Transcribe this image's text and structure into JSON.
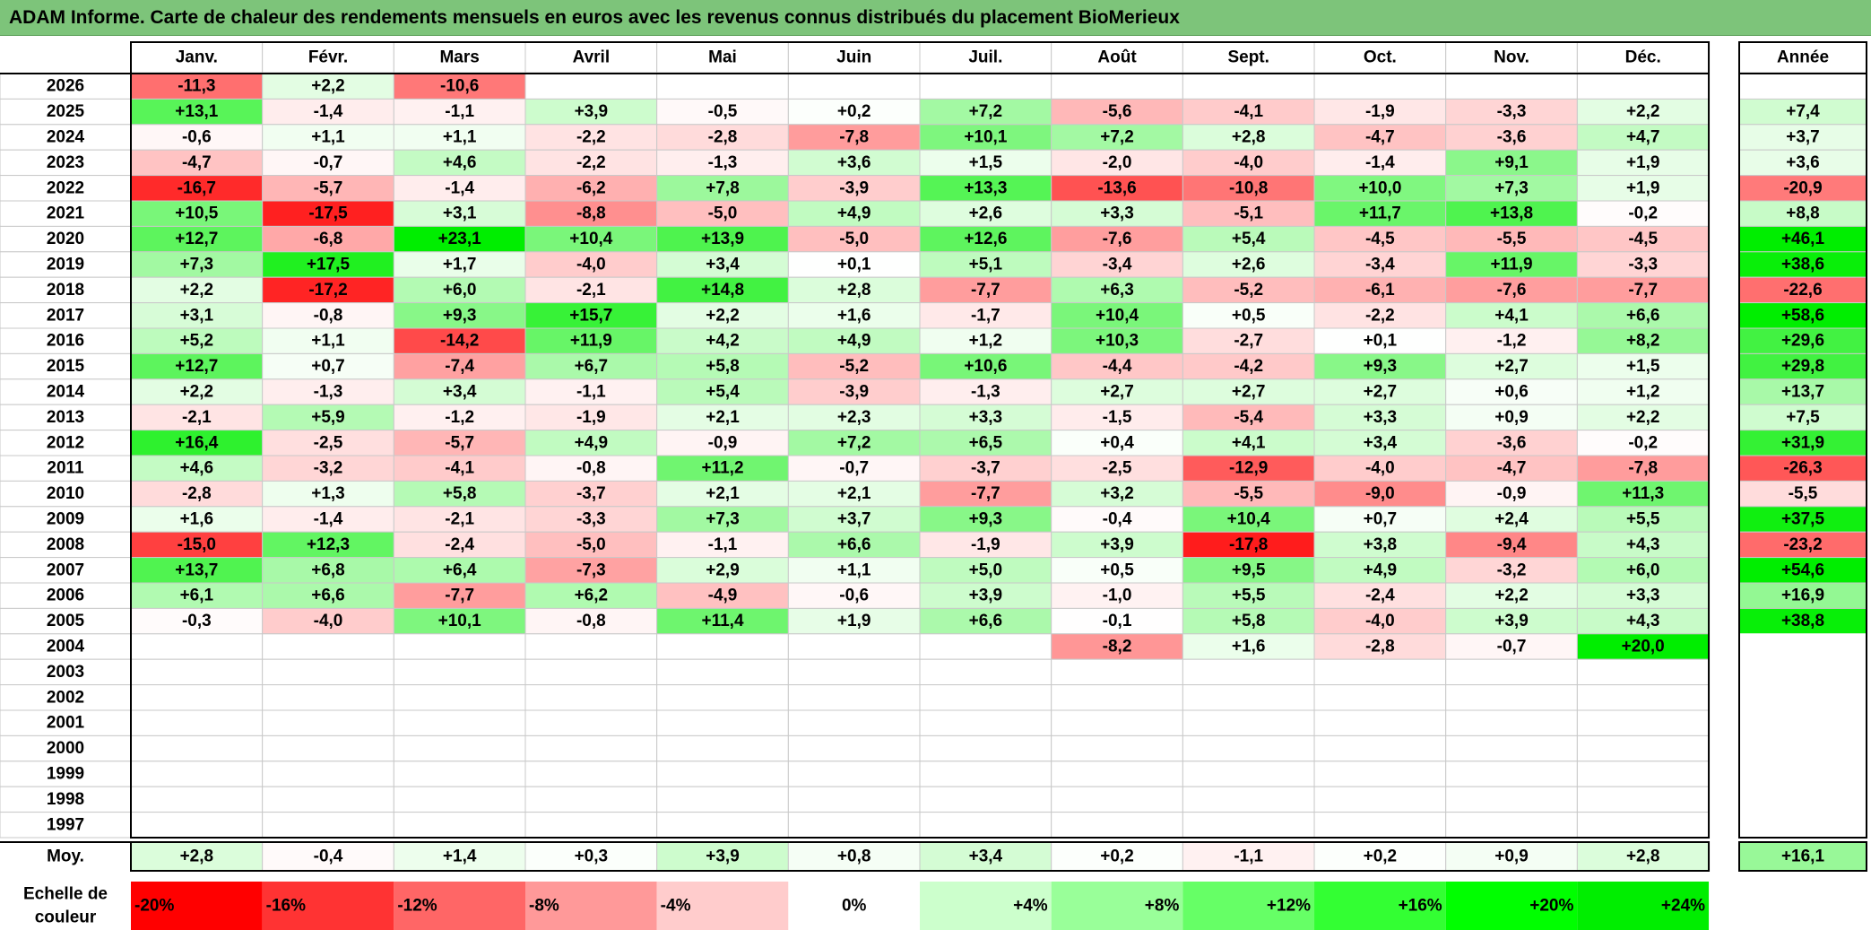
{
  "title": "ADAM Informe. Carte de chaleur des rendements mensuels en euros avec les revenus connus distribués du placement BioMerieux",
  "chart_data": {
    "type": "heatmap",
    "months": [
      "Janv.",
      "Févr.",
      "Mars",
      "Avril",
      "Mai",
      "Juin",
      "Juil.",
      "Août",
      "Sept.",
      "Oct.",
      "Nov.",
      "Déc."
    ],
    "year_header": "Année",
    "rows": [
      {
        "year": "2026",
        "values": [
          -11.3,
          2.2,
          -10.6,
          null,
          null,
          null,
          null,
          null,
          null,
          null,
          null,
          null
        ],
        "annual": null
      },
      {
        "year": "2025",
        "values": [
          13.1,
          -1.4,
          -1.1,
          3.9,
          -0.5,
          0.2,
          7.2,
          -5.6,
          -4.1,
          -1.9,
          -3.3,
          2.2
        ],
        "annual": 7.4
      },
      {
        "year": "2024",
        "values": [
          -0.6,
          1.1,
          1.1,
          -2.2,
          -2.8,
          -7.8,
          10.1,
          7.2,
          2.8,
          -4.7,
          -3.6,
          4.7
        ],
        "annual": 3.7
      },
      {
        "year": "2023",
        "values": [
          -4.7,
          -0.7,
          4.6,
          -2.2,
          -1.3,
          3.6,
          1.5,
          -2.0,
          -4.0,
          -1.4,
          9.1,
          1.9
        ],
        "annual": 3.6
      },
      {
        "year": "2022",
        "values": [
          -16.7,
          -5.7,
          -1.4,
          -6.2,
          7.8,
          -3.9,
          13.3,
          -13.6,
          -10.8,
          10.0,
          7.3,
          1.9
        ],
        "annual": -20.9
      },
      {
        "year": "2021",
        "values": [
          10.5,
          -17.5,
          3.1,
          -8.8,
          -5.0,
          4.9,
          2.6,
          3.3,
          -5.1,
          11.7,
          13.8,
          -0.2
        ],
        "annual": 8.8
      },
      {
        "year": "2020",
        "values": [
          12.7,
          -6.8,
          23.1,
          10.4,
          13.9,
          -5.0,
          12.6,
          -7.6,
          5.4,
          -4.5,
          -5.5,
          -4.5
        ],
        "annual": 46.1
      },
      {
        "year": "2019",
        "values": [
          7.3,
          17.5,
          1.7,
          -4.0,
          3.4,
          0.1,
          5.1,
          -3.4,
          2.6,
          -3.4,
          11.9,
          -3.3
        ],
        "annual": 38.6
      },
      {
        "year": "2018",
        "values": [
          2.2,
          -17.2,
          6.0,
          -2.1,
          14.8,
          2.8,
          -7.7,
          6.3,
          -5.2,
          -6.1,
          -7.6,
          -7.7
        ],
        "annual": -22.6
      },
      {
        "year": "2017",
        "values": [
          3.1,
          -0.8,
          9.3,
          15.7,
          2.2,
          1.6,
          -1.7,
          10.4,
          0.5,
          -2.2,
          4.1,
          6.6
        ],
        "annual": 58.6
      },
      {
        "year": "2016",
        "values": [
          5.2,
          1.1,
          -14.2,
          11.9,
          4.2,
          4.9,
          1.2,
          10.3,
          -2.7,
          0.1,
          -1.2,
          8.2
        ],
        "annual": 29.6
      },
      {
        "year": "2015",
        "values": [
          12.7,
          0.7,
          -7.4,
          6.7,
          5.8,
          -5.2,
          10.6,
          -4.4,
          -4.2,
          9.3,
          2.7,
          1.5
        ],
        "annual": 29.8
      },
      {
        "year": "2014",
        "values": [
          2.2,
          -1.3,
          3.4,
          -1.1,
          5.4,
          -3.9,
          -1.3,
          2.7,
          2.7,
          2.7,
          0.6,
          1.2
        ],
        "annual": 13.7
      },
      {
        "year": "2013",
        "values": [
          -2.1,
          5.9,
          -1.2,
          -1.9,
          2.1,
          2.3,
          3.3,
          -1.5,
          -5.4,
          3.3,
          0.9,
          2.2
        ],
        "annual": 7.5
      },
      {
        "year": "2012",
        "values": [
          16.4,
          -2.5,
          -5.7,
          4.9,
          -0.9,
          7.2,
          6.5,
          0.4,
          4.1,
          3.4,
          -3.6,
          -0.2
        ],
        "annual": 31.9
      },
      {
        "year": "2011",
        "values": [
          4.6,
          -3.2,
          -4.1,
          -0.8,
          11.2,
          -0.7,
          -3.7,
          -2.5,
          -12.9,
          -4.0,
          -4.7,
          -7.8
        ],
        "annual": -26.3
      },
      {
        "year": "2010",
        "values": [
          -2.8,
          1.3,
          5.8,
          -3.7,
          2.1,
          2.1,
          -7.7,
          3.2,
          -5.5,
          -9.0,
          -0.9,
          11.3
        ],
        "annual": -5.5
      },
      {
        "year": "2009",
        "values": [
          1.6,
          -1.4,
          -2.1,
          -3.3,
          7.3,
          3.7,
          9.3,
          -0.4,
          10.4,
          0.7,
          2.4,
          5.5
        ],
        "annual": 37.5
      },
      {
        "year": "2008",
        "values": [
          -15.0,
          12.3,
          -2.4,
          -5.0,
          -1.1,
          6.6,
          -1.9,
          3.9,
          -17.8,
          3.8,
          -9.4,
          4.3
        ],
        "annual": -23.2
      },
      {
        "year": "2007",
        "values": [
          13.7,
          6.8,
          6.4,
          -7.3,
          2.9,
          1.1,
          5.0,
          0.5,
          9.5,
          4.9,
          -3.2,
          6.0
        ],
        "annual": 54.6
      },
      {
        "year": "2006",
        "values": [
          6.1,
          6.6,
          -7.7,
          6.2,
          -4.9,
          -0.6,
          3.9,
          -1.0,
          5.5,
          -2.4,
          2.2,
          3.3
        ],
        "annual": 16.9
      },
      {
        "year": "2005",
        "values": [
          -0.3,
          -4.0,
          10.1,
          -0.8,
          11.4,
          1.9,
          6.6,
          -0.1,
          5.8,
          -4.0,
          3.9,
          4.3
        ],
        "annual": 38.8
      },
      {
        "year": "2004",
        "values": [
          null,
          null,
          null,
          null,
          null,
          null,
          null,
          -8.2,
          1.6,
          -2.8,
          -0.7,
          20.0
        ],
        "annual": null
      },
      {
        "year": "2003",
        "values": [
          null,
          null,
          null,
          null,
          null,
          null,
          null,
          null,
          null,
          null,
          null,
          null
        ],
        "annual": null
      },
      {
        "year": "2002",
        "values": [
          null,
          null,
          null,
          null,
          null,
          null,
          null,
          null,
          null,
          null,
          null,
          null
        ],
        "annual": null
      },
      {
        "year": "2001",
        "values": [
          null,
          null,
          null,
          null,
          null,
          null,
          null,
          null,
          null,
          null,
          null,
          null
        ],
        "annual": null
      },
      {
        "year": "2000",
        "values": [
          null,
          null,
          null,
          null,
          null,
          null,
          null,
          null,
          null,
          null,
          null,
          null
        ],
        "annual": null
      },
      {
        "year": "1999",
        "values": [
          null,
          null,
          null,
          null,
          null,
          null,
          null,
          null,
          null,
          null,
          null,
          null
        ],
        "annual": null
      },
      {
        "year": "1998",
        "values": [
          null,
          null,
          null,
          null,
          null,
          null,
          null,
          null,
          null,
          null,
          null,
          null
        ],
        "annual": null
      },
      {
        "year": "1997",
        "values": [
          null,
          null,
          null,
          null,
          null,
          null,
          null,
          null,
          null,
          null,
          null,
          null
        ],
        "annual": null
      }
    ],
    "average": {
      "label": "Moy.",
      "values": [
        2.8,
        -0.4,
        1.4,
        0.3,
        3.9,
        0.8,
        3.4,
        0.2,
        -1.1,
        0.2,
        0.9,
        2.8
      ],
      "annual": 16.1
    },
    "color_scale": {
      "label_line1": "Echelle de",
      "label_line2": "couleur",
      "steps": [
        {
          "label": "-20%",
          "value": -20,
          "color": "#ff0000"
        },
        {
          "label": "-16%",
          "value": -16,
          "color": "#ff3333"
        },
        {
          "label": "-12%",
          "value": -12,
          "color": "#ff6666"
        },
        {
          "label": "-8%",
          "value": -8,
          "color": "#ff9999"
        },
        {
          "label": "-4%",
          "value": -4,
          "color": "#ffcccc"
        },
        {
          "label": "0%",
          "value": 0,
          "color": "#ffffff"
        },
        {
          "label": "+4%",
          "value": 4,
          "color": "#ccffcc"
        },
        {
          "label": "+8%",
          "value": 8,
          "color": "#99ff99"
        },
        {
          "label": "+12%",
          "value": 12,
          "color": "#66ff66"
        },
        {
          "label": "+16%",
          "value": 16,
          "color": "#33ff33"
        },
        {
          "label": "+20%",
          "value": 20,
          "color": "#00ff00"
        },
        {
          "label": "+24%",
          "value": 24,
          "color": "#00ee00"
        }
      ]
    }
  }
}
